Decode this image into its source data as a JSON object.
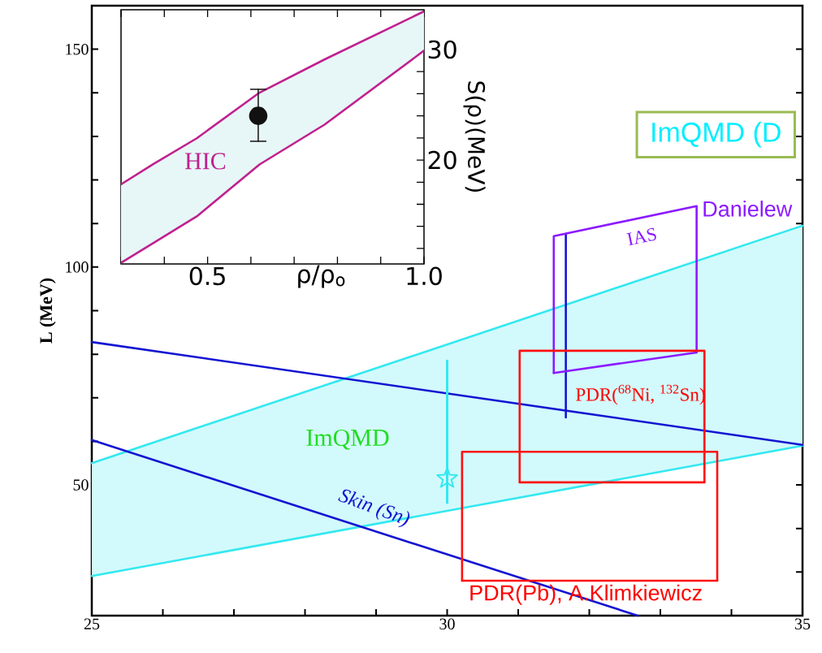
{
  "chart_data": [
    {
      "type": "line",
      "ylabel": "L (MeV)",
      "xlim": [
        25,
        35
      ],
      "ylim": [
        20,
        160
      ],
      "xticks": [
        25,
        {
          "value": 26,
          "label": null
        },
        {
          "value": 27,
          "label": null
        },
        {
          "value": 28,
          "label": null
        },
        {
          "value": 29,
          "label": null
        },
        30,
        {
          "value": 31,
          "label": null
        },
        {
          "value": 32,
          "label": null
        },
        {
          "value": 33,
          "label": null
        },
        {
          "value": 34,
          "label": null
        },
        35
      ],
      "yticks": [
        {
          "value": 30,
          "label": null
        },
        {
          "value": 40,
          "label": null
        },
        50,
        {
          "value": 60,
          "label": null
        },
        {
          "value": 70,
          "label": null
        },
        {
          "value": 80,
          "label": null
        },
        {
          "value": 90,
          "label": null
        },
        100,
        {
          "value": 110,
          "label": null
        },
        {
          "value": 120,
          "label": null
        },
        {
          "value": 130,
          "label": null
        },
        {
          "value": 140,
          "label": null
        },
        150
      ],
      "series": [
        {
          "type": "line",
          "x": [
            25,
            35
          ],
          "values": [
            55.0,
            109.5
          ],
          "lower": [
            29.1,
            59.0
          ],
          "upper": [
            55.0,
            109.5
          ],
          "color": "#33e8f0"
        },
        {
          "type": "line",
          "x": [
            25,
            35
          ],
          "values": [
            29.1,
            59.0
          ],
          "color": "#33e8f0"
        },
        {
          "type": "line",
          "x": [
            25,
            35
          ],
          "values": [
            82.8,
            59.2
          ],
          "color": "#1414d2"
        },
        {
          "type": "line",
          "x": [
            25,
            32.68
          ],
          "values": [
            60.3,
            20
          ],
          "color": "#1414d2"
        },
        {
          "type": "line",
          "x": [
            31.67,
            31.67
          ],
          "values": [
            65.5,
            107.6
          ],
          "color": "#1414d2"
        },
        {
          "type": "line",
          "x": [
            31.5,
            31.5,
            33.51,
            33.51
          ],
          "values": [
            75.7,
            107.1,
            114.0,
            80.4
          ],
          "color": "#8c1aff"
        },
        {
          "type": "line",
          "x": [
            31.5,
            33.51
          ],
          "values": [
            75.7,
            80.4
          ],
          "color": "#8c1aff"
        },
        {
          "type": "line",
          "x": [
            31.02,
            31.02,
            33.62,
            33.62
          ],
          "values": [
            50.6,
            80.8,
            80.8,
            50.6
          ],
          "color": "#ff1010"
        },
        {
          "type": "line",
          "x": [
            31.02,
            33.62
          ],
          "values": [
            50.6,
            50.6
          ],
          "color": "#ff1010"
        },
        {
          "type": "line",
          "x": [
            30.21,
            30.21,
            33.8,
            33.8
          ],
          "values": [
            28.0,
            57.6,
            57.6,
            28.0
          ],
          "color": "#ff1010"
        },
        {
          "type": "line",
          "x": [
            30.21,
            33.8
          ],
          "values": [
            28.0,
            28.0
          ],
          "color": "#ff1010"
        },
        {
          "type": "scatter",
          "x": [
            30.0
          ],
          "values": [
            51.5
          ],
          "errors": [
            [
              45.9,
              78.5
            ]
          ],
          "marker": "star",
          "color": "#33e8f0"
        }
      ],
      "annotations": [
        "ImQMD",
        "Skin (Sn)",
        "IAS",
        "PDR($^{68}$Ni, $^{132}$Sn)",
        "PDR(Pb), A.Klimkiewicz",
        "Danielew",
        "ImQMD (D"
      ]
    },
    {
      "type": "line",
      "xlabel": "ρ/ρ$_{o}$",
      "y2label": "S(ρ)(MeV)",
      "xlim": [
        0.3,
        1.0
      ],
      "y2lim": [
        10.6,
        33.6
      ],
      "xticks": [
        {
          "value": 0.3,
          "label": null
        },
        {
          "value": 0.4,
          "label": null
        },
        0.5,
        {
          "value": 0.6,
          "label": null
        },
        {
          "value": 0.7,
          "label": null
        },
        {
          "value": 0.8,
          "label": null
        },
        {
          "value": 0.9,
          "label": null
        },
        {
          "value": 1.0,
          "label": "1.0"
        }
      ],
      "y2ticks": [
        {
          "value": 12,
          "label": null
        },
        {
          "value": 14,
          "label": null
        },
        {
          "value": 16,
          "label": null
        },
        {
          "value": 18,
          "label": null
        },
        20,
        {
          "value": 22,
          "label": null
        },
        {
          "value": 24,
          "label": null
        },
        {
          "value": 26,
          "label": null
        },
        {
          "value": 28,
          "label": null
        },
        30,
        {
          "value": 32,
          "label": null
        }
      ],
      "series": [
        {
          "type": "line",
          "axis": "y2",
          "x": [
            0.3,
            0.375,
            0.475,
            0.62,
            0.77,
            1.0
          ],
          "values": [
            17.8,
            19.65,
            21.97,
            26.1,
            29.1,
            33.45
          ],
          "lower": [
            10.7,
            12.5,
            14.9,
            19.6,
            23.2,
            29.9
          ],
          "upper": [
            17.8,
            19.65,
            21.97,
            26.1,
            29.1,
            33.45
          ],
          "color": "#c0208f"
        },
        {
          "type": "line",
          "axis": "y2",
          "x": [
            0.3,
            0.375,
            0.475,
            0.62,
            0.77,
            1.0
          ],
          "values": [
            10.7,
            12.5,
            14.9,
            19.6,
            23.2,
            29.9
          ],
          "color": "#c0208f"
        },
        {
          "type": "scatter",
          "axis": "y2",
          "x": [
            0.617
          ],
          "values": [
            24.0
          ],
          "errors": [
            [
              21.7,
              26.4
            ]
          ],
          "marker": "circle",
          "color": "#111111"
        }
      ],
      "annotations": [
        "HIC"
      ]
    }
  ]
}
